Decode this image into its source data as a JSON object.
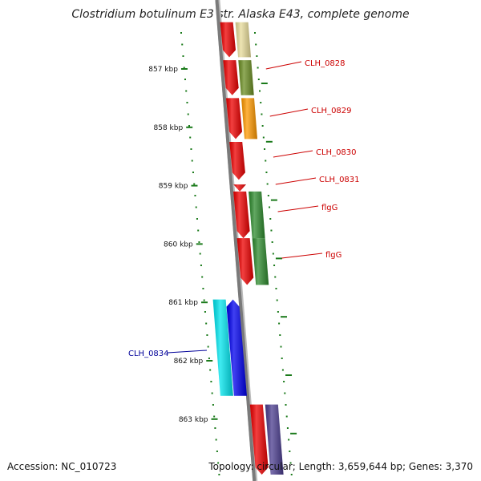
{
  "title": "Clostridium botulinum E3 str. Alaska E43, complete genome",
  "accession": "Accession: NC_010723",
  "summary": "Topology: circular; Length: 3,659,644 bp; Genes: 3,370",
  "colors": {
    "backbone": "#7a7a7a",
    "ticks": "#1a7a1a",
    "forward_label": "#cc0000",
    "reverse_label": "#000099"
  },
  "scale_labels": [
    {
      "kbp": 857,
      "label": "857 kbp"
    },
    {
      "kbp": 858,
      "label": "858 kbp"
    },
    {
      "kbp": 859,
      "label": "859 kbp"
    },
    {
      "kbp": 860,
      "label": "860 kbp"
    },
    {
      "kbp": 861,
      "label": "861 kbp"
    },
    {
      "kbp": 862,
      "label": "862 kbp"
    },
    {
      "kbp": 863,
      "label": "863 kbp"
    }
  ],
  "gene_labels": [
    {
      "text": "CLH_0828",
      "strand": "forward"
    },
    {
      "text": "CLH_0829",
      "strand": "forward"
    },
    {
      "text": "CLH_0830",
      "strand": "forward"
    },
    {
      "text": "CLH_0831",
      "strand": "forward"
    },
    {
      "text": "flgG",
      "strand": "forward"
    },
    {
      "text": "flgG",
      "strand": "forward"
    },
    {
      "text": "CLH_0834",
      "strand": "reverse"
    }
  ],
  "features": [
    {
      "track": "forward-cds",
      "start_kbp": 856.2,
      "end_kbp": 856.8,
      "color": "#ee0000"
    },
    {
      "track": "forward-gene",
      "start_kbp": 856.2,
      "end_kbp": 856.8,
      "color": "#e8dc9a"
    },
    {
      "track": "forward-cds",
      "start_kbp": 856.85,
      "end_kbp": 857.45,
      "color": "#ee0000"
    },
    {
      "track": "forward-gene",
      "start_kbp": 856.85,
      "end_kbp": 857.45,
      "color": "#6b8e23"
    },
    {
      "track": "forward-cds",
      "start_kbp": 857.5,
      "end_kbp": 858.2,
      "color": "#ee0000"
    },
    {
      "track": "forward-gene",
      "start_kbp": 857.5,
      "end_kbp": 858.2,
      "color": "#ff9900"
    },
    {
      "track": "forward-cds",
      "start_kbp": 858.25,
      "end_kbp": 858.9,
      "color": "#ee0000"
    },
    {
      "track": "forward-cds",
      "start_kbp": 858.98,
      "end_kbp": 859.1,
      "color": "#ee0000"
    },
    {
      "track": "forward-cds",
      "start_kbp": 859.1,
      "end_kbp": 859.9,
      "color": "#ee0000"
    },
    {
      "track": "forward-gene",
      "start_kbp": 859.1,
      "end_kbp": 859.9,
      "color": "#2e8b2e"
    },
    {
      "track": "forward-cds",
      "start_kbp": 859.9,
      "end_kbp": 860.7,
      "color": "#ee0000"
    },
    {
      "track": "forward-gene",
      "start_kbp": 859.9,
      "end_kbp": 860.7,
      "color": "#2e8b2e"
    },
    {
      "track": "reverse-gene",
      "start_kbp": 860.95,
      "end_kbp": 862.6,
      "color": "#00e5ee"
    },
    {
      "track": "reverse-cds",
      "start_kbp": 860.95,
      "end_kbp": 862.6,
      "color": "#0000ee"
    },
    {
      "track": "forward-cds",
      "start_kbp": 862.75,
      "end_kbp": 863.95,
      "color": "#ee0000"
    },
    {
      "track": "forward-gene",
      "start_kbp": 862.75,
      "end_kbp": 863.95,
      "color": "#4b3d8f"
    }
  ]
}
